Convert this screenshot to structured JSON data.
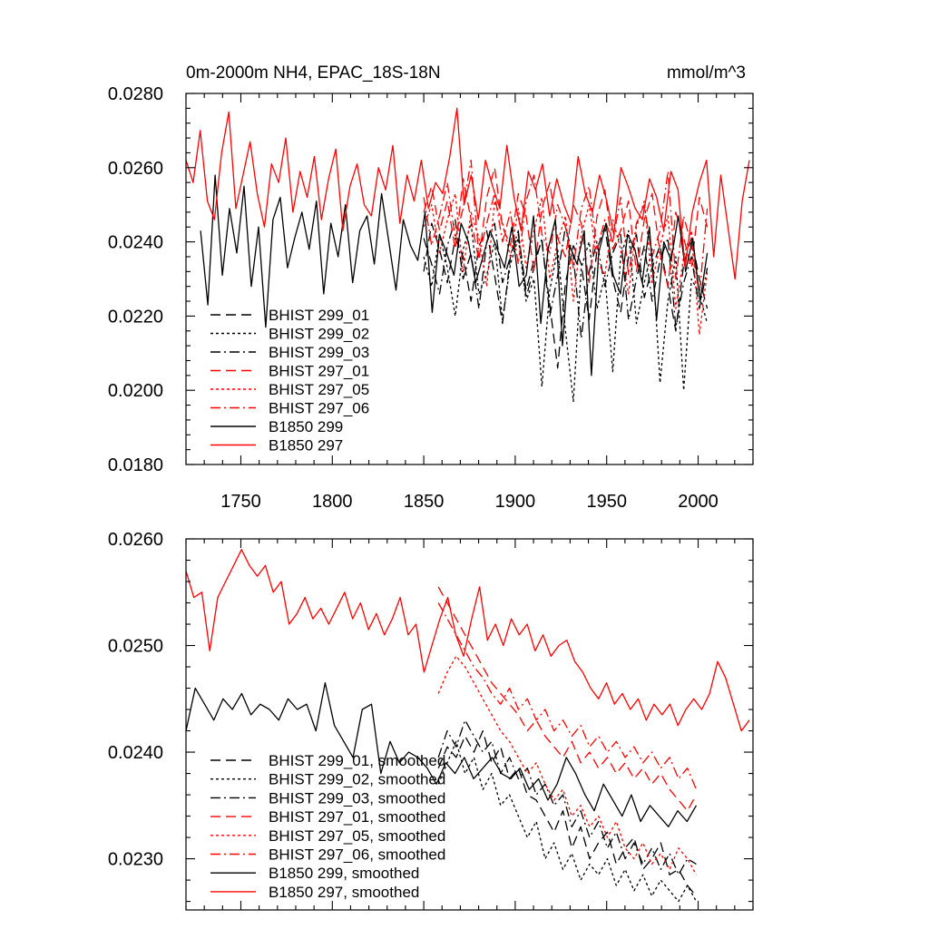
{
  "chart_data": [
    {
      "type": "line",
      "title": "0m-2000m NH4, EPAC_18S-18N",
      "units": "mmol/m^3",
      "xlabel": "",
      "ylabel": "",
      "xlim": [
        1720,
        2030
      ],
      "ylim": [
        0.018,
        0.028
      ],
      "xticks": [
        1750,
        1800,
        1850,
        1900,
        1950,
        2000
      ],
      "xtick_labels": [
        "1750",
        "1800",
        "1850",
        "1900",
        "1950",
        "2000"
      ],
      "yticks": [
        0.018,
        0.02,
        0.022,
        0.024,
        0.026,
        0.028
      ],
      "ytick_labels": [
        "0.0180",
        "0.0200",
        "0.0220",
        "0.0240",
        "0.0260",
        "0.0280"
      ],
      "legend_position": "lower-left",
      "legend": [
        "BHIST 299_01",
        "BHIST 299_02",
        "BHIST 299_03",
        "BHIST 297_01",
        "BHIST 297_05",
        "BHIST 297_06",
        "B1850 299",
        "B1850 297"
      ],
      "series": [
        {
          "name": "BHIST 299_01",
          "color": "#000000",
          "dash": "long-dash",
          "x_start": 1850,
          "x_end": 2005,
          "values": [
            0.0232,
            0.0245,
            0.0238,
            0.0229,
            0.0241,
            0.0236,
            0.0224,
            0.0239,
            0.0243,
            0.0231,
            0.0218,
            0.0236,
            0.0242,
            0.0227,
            0.0235,
            0.024,
            0.0223,
            0.0206,
            0.0229,
            0.0239,
            0.0234,
            0.0219,
            0.0238,
            0.0244,
            0.023,
            0.0221,
            0.0236,
            0.0242,
            0.0225,
            0.0233,
            0.0239,
            0.0228,
            0.0216,
            0.0234,
            0.0241,
            0.023,
            0.0222
          ]
        },
        {
          "name": "BHIST 299_02",
          "color": "#000000",
          "dash": "dot",
          "x_start": 1850,
          "x_end": 2005,
          "values": [
            0.0236,
            0.0228,
            0.0242,
            0.0233,
            0.022,
            0.0238,
            0.0245,
            0.0226,
            0.0231,
            0.024,
            0.0219,
            0.0234,
            0.0241,
            0.0224,
            0.023,
            0.0201,
            0.0227,
            0.0238,
            0.0216,
            0.0197,
            0.0233,
            0.024,
            0.0222,
            0.0231,
            0.0205,
            0.0236,
            0.0243,
            0.0218,
            0.0229,
            0.0238,
            0.0202,
            0.0224,
            0.0236,
            0.02,
            0.023,
            0.0226,
            0.0218
          ]
        },
        {
          "name": "BHIST 299_03",
          "color": "#000000",
          "dash": "dash-dot",
          "x_start": 1850,
          "x_end": 2005,
          "values": [
            0.0241,
            0.0234,
            0.0226,
            0.0239,
            0.0246,
            0.023,
            0.0237,
            0.0222,
            0.024,
            0.0245,
            0.0229,
            0.0236,
            0.0243,
            0.0225,
            0.0233,
            0.0241,
            0.022,
            0.0231,
            0.0244,
            0.0236,
            0.0214,
            0.0232,
            0.024,
            0.0228,
            0.0237,
            0.0242,
            0.0219,
            0.023,
            0.0239,
            0.0224,
            0.0235,
            0.0241,
            0.0217,
            0.0229,
            0.0236,
            0.0222,
            0.0233
          ]
        },
        {
          "name": "BHIST 297_01",
          "color": "#ff0000",
          "dash": "long-dash",
          "x_start": 1850,
          "x_end": 2005,
          "values": [
            0.0248,
            0.0255,
            0.0243,
            0.0251,
            0.0238,
            0.0257,
            0.0246,
            0.0235,
            0.0252,
            0.026,
            0.0244,
            0.0239,
            0.0253,
            0.0247,
            0.0232,
            0.0249,
            0.0256,
            0.0241,
            0.0236,
            0.025,
            0.0245,
            0.0229,
            0.0247,
            0.0254,
            0.0238,
            0.0243,
            0.0251,
            0.0232,
            0.0246,
            0.0253,
            0.0237,
            0.0228,
            0.0248,
            0.0241,
            0.0233,
            0.0252,
            0.0244
          ]
        },
        {
          "name": "BHIST 297_05",
          "color": "#ff0000",
          "dash": "dot",
          "x_start": 1850,
          "x_end": 2005,
          "values": [
            0.0244,
            0.025,
            0.0237,
            0.0246,
            0.0253,
            0.0232,
            0.0248,
            0.0241,
            0.0228,
            0.0251,
            0.0245,
            0.0236,
            0.0249,
            0.0233,
            0.0243,
            0.0252,
            0.023,
            0.024,
            0.0247,
            0.0224,
            0.0242,
            0.025,
            0.0235,
            0.0231,
            0.0246,
            0.0238,
            0.0226,
            0.0244,
            0.0251,
            0.0229,
            0.0239,
            0.0247,
            0.0222,
            0.0236,
            0.0243,
            0.0215,
            0.0232
          ]
        },
        {
          "name": "BHIST 297_06",
          "color": "#ff0000",
          "dash": "dash-dot",
          "x_start": 1850,
          "x_end": 2005,
          "values": [
            0.0252,
            0.0239,
            0.0247,
            0.0256,
            0.0241,
            0.0249,
            0.0262,
            0.0236,
            0.0245,
            0.0253,
            0.024,
            0.0248,
            0.0234,
            0.0251,
            0.0258,
            0.0242,
            0.0237,
            0.025,
            0.0244,
            0.0233,
            0.0249,
            0.0255,
            0.0238,
            0.0246,
            0.024,
            0.0252,
            0.0231,
            0.0245,
            0.025,
            0.0236,
            0.0243,
            0.0259,
            0.023,
            0.0247,
            0.0239,
            0.0226,
            0.0249
          ]
        },
        {
          "name": "B1850 299",
          "color": "#000000",
          "dash": "solid",
          "x_start": 1728,
          "x_end": 2005,
          "values": [
            0.0243,
            0.0223,
            0.0258,
            0.0231,
            0.0249,
            0.0237,
            0.0255,
            0.0228,
            0.0244,
            0.0217,
            0.0246,
            0.0252,
            0.0233,
            0.0241,
            0.0248,
            0.0238,
            0.0251,
            0.0226,
            0.0245,
            0.0236,
            0.025,
            0.0229,
            0.0243,
            0.0247,
            0.0234,
            0.0253,
            0.024,
            0.0227,
            0.0246,
            0.0239,
            0.0235,
            0.0248,
            0.0221,
            0.0242,
            0.0237,
            0.0231,
            0.0245,
            0.024,
            0.0229,
            0.0236,
            0.0243,
            0.0238,
            0.0233,
            0.0244,
            0.0228,
            0.0231,
            0.0247,
            0.0218,
            0.0238,
            0.0246,
            0.0212,
            0.0239,
            0.0234,
            0.0243,
            0.0204,
            0.0237,
            0.0245,
            0.0231,
            0.0226,
            0.0242,
            0.0238,
            0.0229,
            0.0244,
            0.0219,
            0.024,
            0.0235,
            0.0247,
            0.0232,
            0.0241,
            0.0224,
            0.0237
          ]
        },
        {
          "name": "B1850 297",
          "color": "#ff0000",
          "dash": "solid",
          "x_start": 1720,
          "x_end": 2028,
          "values": [
            0.0262,
            0.0256,
            0.027,
            0.0251,
            0.0246,
            0.0264,
            0.0275,
            0.0249,
            0.0258,
            0.0267,
            0.0253,
            0.0244,
            0.0261,
            0.0256,
            0.0268,
            0.0248,
            0.0259,
            0.0252,
            0.0263,
            0.0246,
            0.0257,
            0.0265,
            0.0243,
            0.0255,
            0.0261,
            0.025,
            0.0247,
            0.026,
            0.0254,
            0.0266,
            0.0245,
            0.0258,
            0.0251,
            0.0262,
            0.0249,
            0.0256,
            0.0253,
            0.0263,
            0.0276,
            0.025,
            0.0258,
            0.0246,
            0.0262,
            0.0255,
            0.0249,
            0.0266,
            0.0252,
            0.0243,
            0.0259,
            0.0254,
            0.0261,
            0.0247,
            0.0257,
            0.025,
            0.0245,
            0.0263,
            0.0253,
            0.0248,
            0.0258,
            0.0251,
            0.0242,
            0.026,
            0.0255,
            0.0249,
            0.0246,
            0.0257,
            0.0252,
            0.0243,
            0.0259,
            0.0254,
            0.0233,
            0.0248,
            0.0256,
            0.0262,
            0.0236,
            0.0258,
            0.0244,
            0.023,
            0.0251,
            0.0262
          ]
        }
      ]
    },
    {
      "type": "line",
      "title": "",
      "xlabel": "",
      "ylabel": "",
      "xlim": [
        1720,
        2030
      ],
      "ylim": [
        0.02252,
        0.026
      ],
      "xticks": [
        1750,
        1800,
        1850,
        1900,
        1950,
        2000
      ],
      "xtick_labels": [],
      "yticks": [
        0.023,
        0.024,
        0.025,
        0.026
      ],
      "ytick_labels": [
        "0.0230",
        "0.0240",
        "0.0250",
        "0.0260"
      ],
      "legend_position": "lower-left",
      "legend": [
        "BHIST 299_01, smoothed",
        "BHIST 299_02, smoothed",
        "BHIST 299_03, smoothed",
        "BHIST 297_01, smoothed",
        "BHIST 297_05, smoothed",
        "BHIST 297_06, smoothed",
        "B1850 299, smoothed",
        "B1850 297, smoothed"
      ],
      "series": [
        {
          "name": "BHIST 299_01, smoothed",
          "color": "#000000",
          "dash": "long-dash",
          "x_start": 1858,
          "x_end": 1999,
          "values": [
            0.02385,
            0.02405,
            0.02395,
            0.02415,
            0.024,
            0.0242,
            0.0239,
            0.02405,
            0.02375,
            0.02385,
            0.0236,
            0.02355,
            0.0234,
            0.02325,
            0.02345,
            0.0231,
            0.0233,
            0.023,
            0.02315,
            0.02325,
            0.02295,
            0.0231,
            0.0232,
            0.0229,
            0.023,
            0.02315,
            0.02285,
            0.0229,
            0.02275,
            0.02265
          ]
        },
        {
          "name": "BHIST 299_02, smoothed",
          "color": "#000000",
          "dash": "dot",
          "x_start": 1858,
          "x_end": 1999,
          "values": [
            0.0237,
            0.0239,
            0.0241,
            0.0238,
            0.02395,
            0.02365,
            0.0238,
            0.0235,
            0.0236,
            0.0234,
            0.0232,
            0.02335,
            0.023,
            0.02315,
            0.0229,
            0.02305,
            0.0228,
            0.02295,
            0.02285,
            0.023,
            0.02275,
            0.0229,
            0.0227,
            0.02285,
            0.02265,
            0.0228,
            0.0227,
            0.0226,
            0.02275,
            0.0226
          ]
        },
        {
          "name": "BHIST 299_03, smoothed",
          "color": "#000000",
          "dash": "dash-dot",
          "x_start": 1858,
          "x_end": 1999,
          "values": [
            0.02395,
            0.0242,
            0.02405,
            0.0243,
            0.02415,
            0.024,
            0.0241,
            0.0238,
            0.02395,
            0.02375,
            0.02385,
            0.0236,
            0.0237,
            0.0235,
            0.0236,
            0.0233,
            0.02345,
            0.0232,
            0.02335,
            0.0231,
            0.02325,
            0.023,
            0.02315,
            0.02295,
            0.0231,
            0.0229,
            0.02305,
            0.02285,
            0.023,
            0.02295
          ]
        },
        {
          "name": "BHIST 297_01, smoothed",
          "color": "#ff0000",
          "dash": "long-dash",
          "x_start": 1858,
          "x_end": 1999,
          "values": [
            0.02555,
            0.0254,
            0.02525,
            0.0251,
            0.02495,
            0.0248,
            0.02465,
            0.02455,
            0.02445,
            0.02435,
            0.0242,
            0.0243,
            0.02415,
            0.02405,
            0.02395,
            0.0241,
            0.0239,
            0.024,
            0.02385,
            0.02395,
            0.0238,
            0.0239,
            0.02375,
            0.02385,
            0.0237,
            0.0238,
            0.02365,
            0.02355,
            0.02345,
            0.0236
          ]
        },
        {
          "name": "BHIST 297_05, smoothed",
          "color": "#ff0000",
          "dash": "dot",
          "x_start": 1858,
          "x_end": 1999,
          "values": [
            0.02455,
            0.02475,
            0.0249,
            0.0248,
            0.02465,
            0.0245,
            0.02435,
            0.0242,
            0.0241,
            0.02395,
            0.0238,
            0.0239,
            0.0237,
            0.02355,
            0.02365,
            0.0234,
            0.0235,
            0.0233,
            0.0234,
            0.0232,
            0.02335,
            0.0231,
            0.023,
            0.02315,
            0.02295,
            0.02305,
            0.0229,
            0.0231,
            0.023,
            0.02285
          ]
        },
        {
          "name": "BHIST 297_06, smoothed",
          "color": "#ff0000",
          "dash": "dash-dot",
          "x_start": 1858,
          "x_end": 1999,
          "values": [
            0.0254,
            0.02525,
            0.0251,
            0.02495,
            0.0248,
            0.0247,
            0.02455,
            0.02445,
            0.0246,
            0.0244,
            0.0245,
            0.0243,
            0.0244,
            0.0242,
            0.0243,
            0.02415,
            0.02425,
            0.02405,
            0.02415,
            0.024,
            0.0241,
            0.02395,
            0.02405,
            0.0239,
            0.024,
            0.02385,
            0.02395,
            0.02375,
            0.02385,
            0.02365
          ]
        },
        {
          "name": "B1850 299, smoothed",
          "color": "#000000",
          "dash": "solid",
          "x_start": 1720,
          "x_end": 1999,
          "values": [
            0.0242,
            0.0246,
            0.02445,
            0.0243,
            0.0245,
            0.0244,
            0.02455,
            0.02435,
            0.02445,
            0.0244,
            0.0243,
            0.0245,
            0.0244,
            0.02445,
            0.0242,
            0.02465,
            0.02425,
            0.0241,
            0.02395,
            0.0244,
            0.02445,
            0.0238,
            0.0241,
            0.0239,
            0.024,
            0.02395,
            0.02385,
            0.0237,
            0.0239,
            0.0238,
            0.02395,
            0.02375,
            0.02385,
            0.02395,
            0.0238,
            0.02375,
            0.02385,
            0.02365,
            0.02375,
            0.02355,
            0.0237,
            0.02395,
            0.0238,
            0.0236,
            0.02345,
            0.0237,
            0.02355,
            0.0234,
            0.0236,
            0.02335,
            0.0235,
            0.0234,
            0.0233,
            0.02345,
            0.02335,
            0.0235
          ]
        },
        {
          "name": "B1850 297, smoothed",
          "color": "#ff0000",
          "dash": "solid",
          "x_start": 1720,
          "x_end": 2028,
          "values": [
            0.0257,
            0.02545,
            0.0255,
            0.02495,
            0.02545,
            0.0256,
            0.02575,
            0.0259,
            0.02575,
            0.02565,
            0.02575,
            0.0255,
            0.0256,
            0.0252,
            0.0253,
            0.02545,
            0.02525,
            0.02535,
            0.0252,
            0.02535,
            0.0255,
            0.02525,
            0.0254,
            0.02515,
            0.0253,
            0.0251,
            0.02525,
            0.02545,
            0.0251,
            0.0252,
            0.02475,
            0.025,
            0.02525,
            0.02545,
            0.0251,
            0.0249,
            0.02525,
            0.02555,
            0.02505,
            0.0252,
            0.025,
            0.02525,
            0.0251,
            0.0252,
            0.02495,
            0.0251,
            0.0249,
            0.025,
            0.02505,
            0.02485,
            0.02475,
            0.0246,
            0.0245,
            0.02465,
            0.02445,
            0.02455,
            0.0244,
            0.0245,
            0.0243,
            0.02445,
            0.02435,
            0.02445,
            0.02425,
            0.0244,
            0.0245,
            0.0244,
            0.02455,
            0.02485,
            0.0247,
            0.02445,
            0.0242,
            0.0243
          ]
        }
      ]
    }
  ]
}
